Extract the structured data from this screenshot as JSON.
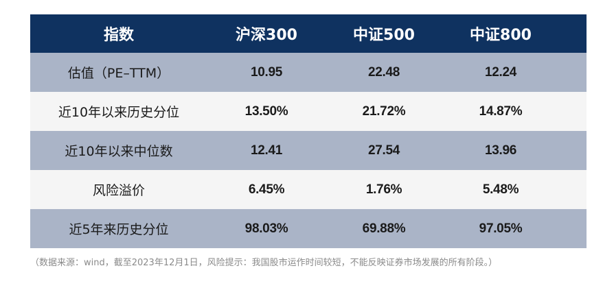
{
  "table": {
    "headers": [
      "指数",
      "沪深300",
      "中证500",
      "中证800"
    ],
    "rows": [
      [
        "估值（PE–TTM）",
        "10.95",
        "22.48",
        "12.24"
      ],
      [
        "近10年以来历史分位",
        "13.50%",
        "21.72%",
        "14.87%"
      ],
      [
        "近10年以来中位数",
        "12.41",
        "27.54",
        "13.96"
      ],
      [
        "风险溢价",
        "6.45%",
        "1.76%",
        "5.48%"
      ],
      [
        "近5年来历史分位",
        "98.03%",
        "69.88%",
        "97.05%"
      ]
    ]
  },
  "colors": {
    "header_bg": "#0f3260",
    "shaded_row_bg": "#aab4c7",
    "plain_row_bg": "#f5f5f5"
  },
  "note": "（数据来源：wind，截至2023年12月1日，风险提示：我国股市运作时间较短，不能反映证券市场发展的所有阶段。）"
}
